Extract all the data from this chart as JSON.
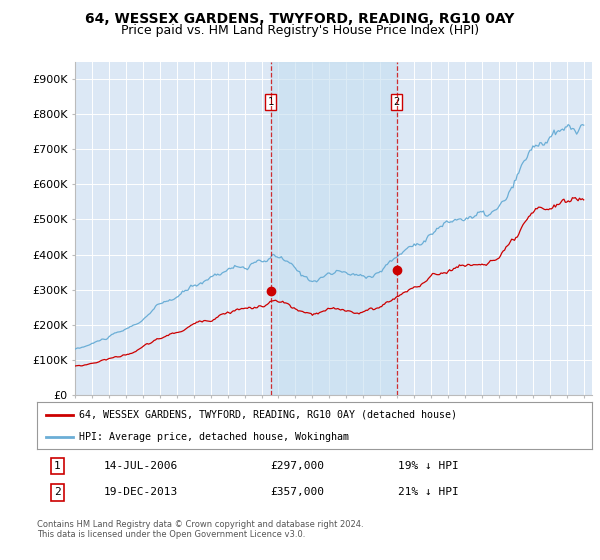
{
  "title": "64, WESSEX GARDENS, TWYFORD, READING, RG10 0AY",
  "subtitle": "Price paid vs. HM Land Registry's House Price Index (HPI)",
  "ylabel_ticks": [
    "£0",
    "£100K",
    "£200K",
    "£300K",
    "£400K",
    "£500K",
    "£600K",
    "£700K",
    "£800K",
    "£900K"
  ],
  "ytick_values": [
    0,
    100000,
    200000,
    300000,
    400000,
    500000,
    600000,
    700000,
    800000,
    900000
  ],
  "ylim": [
    0,
    950000
  ],
  "xlim_start": 1995.0,
  "xlim_end": 2025.5,
  "background_color": "#ffffff",
  "plot_bg_color": "#dce8f5",
  "grid_color": "#ffffff",
  "hpi_color": "#6baed6",
  "hpi_fill_color": "#c6dff0",
  "price_color": "#cc0000",
  "sale1_x": 2006.537,
  "sale1_y": 297000,
  "sale1_label": "1",
  "sale2_x": 2013.962,
  "sale2_y": 357000,
  "sale2_label": "2",
  "shade_color": "#c6dff0",
  "legend_entry1": "64, WESSEX GARDENS, TWYFORD, READING, RG10 0AY (detached house)",
  "legend_entry2": "HPI: Average price, detached house, Wokingham",
  "table_row1": [
    "1",
    "14-JUL-2006",
    "£297,000",
    "19% ↓ HPI"
  ],
  "table_row2": [
    "2",
    "19-DEC-2013",
    "£357,000",
    "21% ↓ HPI"
  ],
  "footnote": "Contains HM Land Registry data © Crown copyright and database right 2024.\nThis data is licensed under the Open Government Licence v3.0.",
  "title_fontsize": 10,
  "subtitle_fontsize": 9,
  "tick_fontsize": 8
}
